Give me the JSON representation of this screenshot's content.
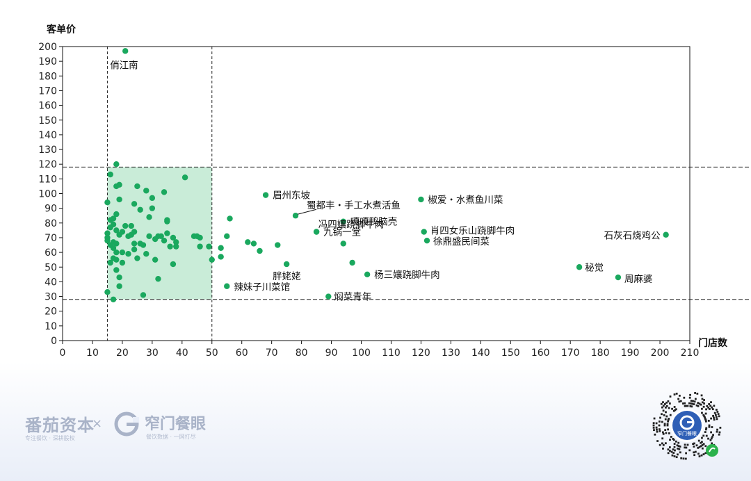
{
  "chart_data": {
    "type": "scatter",
    "xlabel": "门店数",
    "ylabel": "客单价",
    "xlim": [
      0,
      210
    ],
    "ylim": [
      0,
      200
    ],
    "x_ticks": [
      0,
      10,
      20,
      30,
      40,
      50,
      60,
      70,
      80,
      90,
      100,
      110,
      120,
      130,
      140,
      150,
      160,
      170,
      180,
      190,
      200,
      210
    ],
    "y_ticks": [
      0,
      10,
      20,
      30,
      40,
      50,
      60,
      70,
      80,
      90,
      100,
      110,
      120,
      130,
      140,
      150,
      160,
      170,
      180,
      190,
      200
    ],
    "ref_lines": {
      "x": [
        15,
        50
      ],
      "y": [
        28,
        118
      ]
    },
    "highlight_region": {
      "x": [
        15,
        50
      ],
      "y": [
        28,
        118
      ],
      "color": "#c9ecd8"
    },
    "point_color": "#1aa85e",
    "points": [
      {
        "x": 15,
        "y": 94
      },
      {
        "x": 15,
        "y": 73
      },
      {
        "x": 15,
        "y": 70
      },
      {
        "x": 15,
        "y": 68
      },
      {
        "x": 15,
        "y": 33
      },
      {
        "x": 16,
        "y": 113
      },
      {
        "x": 16,
        "y": 82
      },
      {
        "x": 16,
        "y": 77
      },
      {
        "x": 16,
        "y": 65
      },
      {
        "x": 16,
        "y": 53
      },
      {
        "x": 17,
        "y": 83
      },
      {
        "x": 17,
        "y": 79
      },
      {
        "x": 17,
        "y": 67
      },
      {
        "x": 17,
        "y": 63
      },
      {
        "x": 17,
        "y": 56
      },
      {
        "x": 17,
        "y": 28
      },
      {
        "x": 18,
        "y": 120
      },
      {
        "x": 18,
        "y": 105
      },
      {
        "x": 18,
        "y": 86
      },
      {
        "x": 18,
        "y": 75
      },
      {
        "x": 18,
        "y": 66
      },
      {
        "x": 18,
        "y": 60
      },
      {
        "x": 18,
        "y": 55
      },
      {
        "x": 18,
        "y": 48
      },
      {
        "x": 19,
        "y": 106
      },
      {
        "x": 19,
        "y": 96
      },
      {
        "x": 19,
        "y": 72
      },
      {
        "x": 19,
        "y": 43
      },
      {
        "x": 19,
        "y": 37
      },
      {
        "x": 20,
        "y": 74
      },
      {
        "x": 20,
        "y": 60
      },
      {
        "x": 20,
        "y": 53
      },
      {
        "x": 21,
        "y": 197
      },
      {
        "x": 21,
        "y": 78
      },
      {
        "x": 22,
        "y": 71
      },
      {
        "x": 22,
        "y": 59
      },
      {
        "x": 23,
        "y": 78
      },
      {
        "x": 23,
        "y": 72
      },
      {
        "x": 24,
        "y": 93
      },
      {
        "x": 24,
        "y": 74
      },
      {
        "x": 24,
        "y": 66
      },
      {
        "x": 24,
        "y": 62
      },
      {
        "x": 25,
        "y": 105
      },
      {
        "x": 25,
        "y": 56
      },
      {
        "x": 26,
        "y": 89
      },
      {
        "x": 26,
        "y": 66
      },
      {
        "x": 27,
        "y": 65
      },
      {
        "x": 27,
        "y": 31
      },
      {
        "x": 28,
        "y": 102
      },
      {
        "x": 28,
        "y": 59
      },
      {
        "x": 29,
        "y": 84
      },
      {
        "x": 29,
        "y": 71
      },
      {
        "x": 30,
        "y": 97
      },
      {
        "x": 30,
        "y": 90
      },
      {
        "x": 31,
        "y": 55
      },
      {
        "x": 31,
        "y": 69
      },
      {
        "x": 32,
        "y": 42
      },
      {
        "x": 32,
        "y": 71
      },
      {
        "x": 33,
        "y": 71
      },
      {
        "x": 34,
        "y": 101
      },
      {
        "x": 34,
        "y": 68
      },
      {
        "x": 35,
        "y": 82
      },
      {
        "x": 35,
        "y": 81
      },
      {
        "x": 35,
        "y": 73
      },
      {
        "x": 36,
        "y": 64
      },
      {
        "x": 37,
        "y": 52
      },
      {
        "x": 37,
        "y": 70
      },
      {
        "x": 38,
        "y": 67
      },
      {
        "x": 38,
        "y": 64
      },
      {
        "x": 41,
        "y": 111
      },
      {
        "x": 44,
        "y": 71
      },
      {
        "x": 45,
        "y": 71
      },
      {
        "x": 46,
        "y": 70
      },
      {
        "x": 46,
        "y": 64
      },
      {
        "x": 49,
        "y": 64
      },
      {
        "x": 50,
        "y": 55
      },
      {
        "x": 53,
        "y": 63
      },
      {
        "x": 53,
        "y": 57
      },
      {
        "x": 55,
        "y": 71
      },
      {
        "x": 56,
        "y": 83
      },
      {
        "x": 62,
        "y": 67
      },
      {
        "x": 64,
        "y": 66
      },
      {
        "x": 66,
        "y": 61
      },
      {
        "x": 72,
        "y": 65
      },
      {
        "x": 85,
        "y": 74
      },
      {
        "x": 55,
        "y": 37,
        "label": "辣妹子川菜馆"
      },
      {
        "x": 68,
        "y": 99,
        "label": "眉州东坡"
      },
      {
        "x": 75,
        "y": 52,
        "label": "胖姥姥"
      },
      {
        "x": 78,
        "y": 85,
        "label": "蜀都丰・手工水煮活鱼"
      },
      {
        "x": 85,
        "y": 74,
        "label": "九锅一堂"
      },
      {
        "x": 89,
        "y": 30,
        "label": "焖菜青年"
      },
      {
        "x": 94,
        "y": 81,
        "label": "嘎嘎鸭脑壳"
      },
      {
        "x": 94,
        "y": 66,
        "label": "冯四孃跷脚牛肉"
      },
      {
        "x": 97,
        "y": 53
      },
      {
        "x": 102,
        "y": 45,
        "label": "杨三孃跷脚牛肉"
      },
      {
        "x": 120,
        "y": 96,
        "label": "椒爱・水煮鱼川菜"
      },
      {
        "x": 121,
        "y": 74,
        "label": "肖四女乐山跷脚牛肉"
      },
      {
        "x": 122,
        "y": 68,
        "label": "徐鼎盛民间菜"
      },
      {
        "x": 173,
        "y": 50,
        "label": "秘觉"
      },
      {
        "x": 186,
        "y": 43,
        "label": "周麻婆"
      },
      {
        "x": 202,
        "y": 72,
        "label": "石灰石烧鸡公"
      }
    ],
    "labels_extra": [
      {
        "text": "俏江南",
        "x": 21,
        "y": 197
      }
    ]
  },
  "footer": {
    "brand1": "番茄资本",
    "brand1_sub": "专注餐饮 · 深耕股权",
    "times": "×",
    "brand2": "窄门餐眼",
    "brand2_sub": "餐饮数据 · 一网打尽",
    "qr_label": "窄门餐眼"
  }
}
